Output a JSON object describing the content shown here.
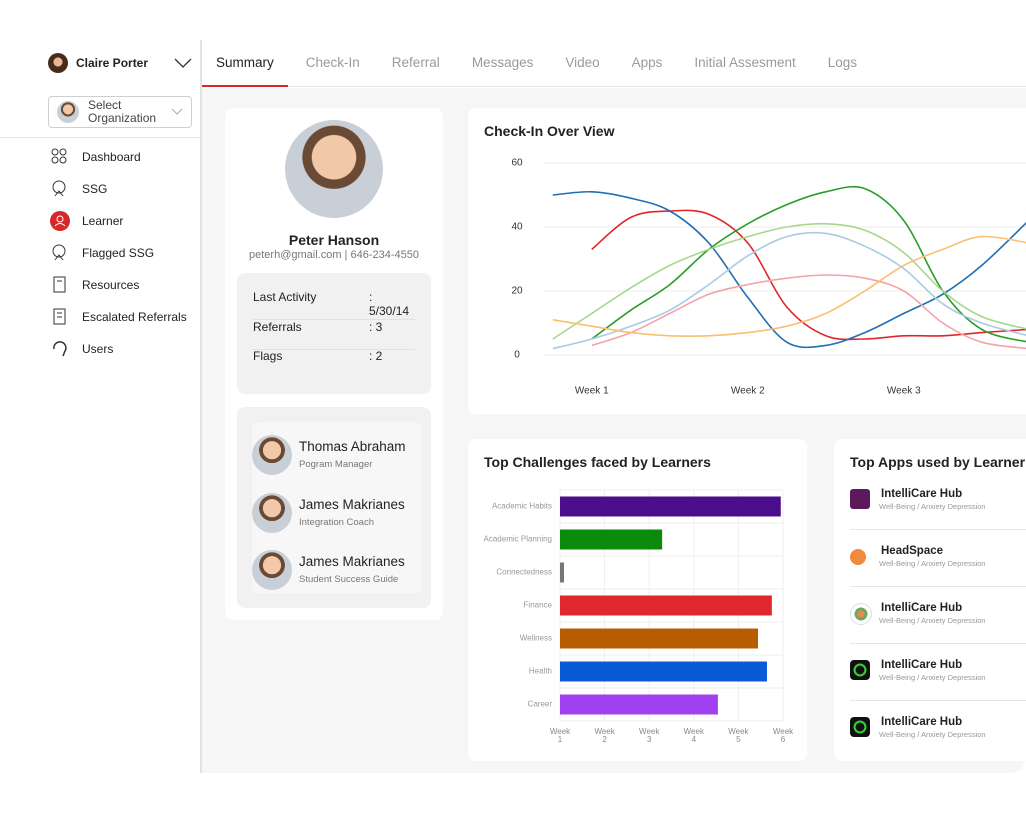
{
  "sidebar": {
    "user": "Claire Porter",
    "org_select": "Select Organization",
    "nav": [
      "Dashboard",
      "SSG",
      "Learner",
      "Flagged SSG",
      "Resources",
      "Escalated Referrals",
      "Users"
    ]
  },
  "tabs": [
    "Summary",
    "Check-In",
    "Referral",
    "Messages",
    "Video",
    "Apps",
    "Initial Assesment",
    "Logs"
  ],
  "profile": {
    "name": "Peter Hanson",
    "contact": "peterh@gmail.com | 646-234-4550",
    "stats": [
      {
        "label": "Last Activity",
        "value": ": 5/30/14"
      },
      {
        "label": "Referrals",
        "value": ": 3"
      },
      {
        "label": "Flags",
        "value": ": 2"
      }
    ]
  },
  "team": [
    {
      "name": "Thomas Abraham",
      "role": "Pogram Manager"
    },
    {
      "name": "James Makrianes",
      "role": "Integration Coach"
    },
    {
      "name": "James Makrianes",
      "role": "Student Success Guide"
    }
  ],
  "chart_data": [
    {
      "type": "line",
      "title": "Check-In Over View",
      "x": [
        0.75,
        1,
        1.25,
        1.5,
        1.75,
        2,
        2.25,
        2.5,
        2.75,
        3,
        3.25,
        3.5,
        3.8
      ],
      "xlim": [
        0.7,
        3.8
      ],
      "xticks": [
        {
          "value": 1,
          "label": "Week 1"
        },
        {
          "value": 2,
          "label": "Week 2"
        },
        {
          "value": 3,
          "label": "Week 3"
        }
      ],
      "ylim": [
        0,
        60
      ],
      "yticks": [
        0,
        20,
        40,
        60
      ],
      "grid": true,
      "series": [
        {
          "color": "#e0262b",
          "values": [
            null,
            33,
            43,
            45,
            44,
            35,
            15,
            6,
            5,
            6,
            6,
            7,
            8
          ]
        },
        {
          "color": "#1f6fb4",
          "values": [
            50,
            51,
            49,
            45,
            35,
            18,
            4,
            3,
            7,
            13,
            19,
            28,
            42
          ]
        },
        {
          "color": "#2a9d2a",
          "values": [
            null,
            5,
            14,
            22,
            33,
            41,
            47,
            51,
            52,
            42,
            20,
            8,
            4
          ]
        },
        {
          "color": "#a6d88a",
          "values": [
            5,
            13,
            21,
            28,
            33,
            37,
            40,
            41,
            39,
            32,
            20,
            12,
            8
          ]
        },
        {
          "color": "#a8cbe3",
          "values": [
            2,
            5,
            9,
            14,
            22,
            31,
            37,
            38,
            34,
            27,
            16,
            10,
            6
          ]
        },
        {
          "color": "#f4a3a8",
          "values": [
            null,
            3,
            7,
            13,
            19,
            22,
            24,
            25,
            24,
            20,
            10,
            4,
            2
          ]
        },
        {
          "color": "#fbbf6e",
          "values": [
            11,
            9,
            7,
            6,
            6,
            7,
            9,
            13,
            20,
            28,
            33,
            37,
            35
          ]
        }
      ]
    },
    {
      "type": "bar",
      "orientation": "horizontal",
      "title": "Top Challenges faced by Learners",
      "categories": [
        "Academic Habits",
        "Academic Planning",
        "Connectedness",
        "Finance",
        "Wellness",
        "Health",
        "Career"
      ],
      "values": [
        5.95,
        3.29,
        1.09,
        5.75,
        5.44,
        5.64,
        4.54
      ],
      "colors": [
        "#4b0d8c",
        "#0b8a0b",
        "#777777",
        "#e0272e",
        "#b85c00",
        "#0a5ad8",
        "#a040f0"
      ],
      "xlim": [
        1,
        6
      ],
      "xticks": [
        {
          "value": 1,
          "label": "Week 1"
        },
        {
          "value": 2,
          "label": "Week 2"
        },
        {
          "value": 3,
          "label": "Week 3"
        },
        {
          "value": 4,
          "label": "Week 4"
        },
        {
          "value": 5,
          "label": "Week 5"
        },
        {
          "value": 6,
          "label": "Week 6"
        }
      ],
      "grid": true
    }
  ],
  "apps": {
    "title": "Top Apps used by Learner",
    "items": [
      {
        "name": "IntelliCare Hub",
        "desc": "Well-Being / Anxiety Depression"
      },
      {
        "name": "HeadSpace",
        "desc": "Well-Being / Anxiety Depression"
      },
      {
        "name": "IntelliCare Hub",
        "desc": "Well-Being / Anxiety Depression"
      },
      {
        "name": "IntelliCare Hub",
        "desc": "Well-Being / Anxiety Depression"
      },
      {
        "name": "IntelliCare Hub",
        "desc": "Well-Being / Anxiety Depression"
      }
    ]
  }
}
